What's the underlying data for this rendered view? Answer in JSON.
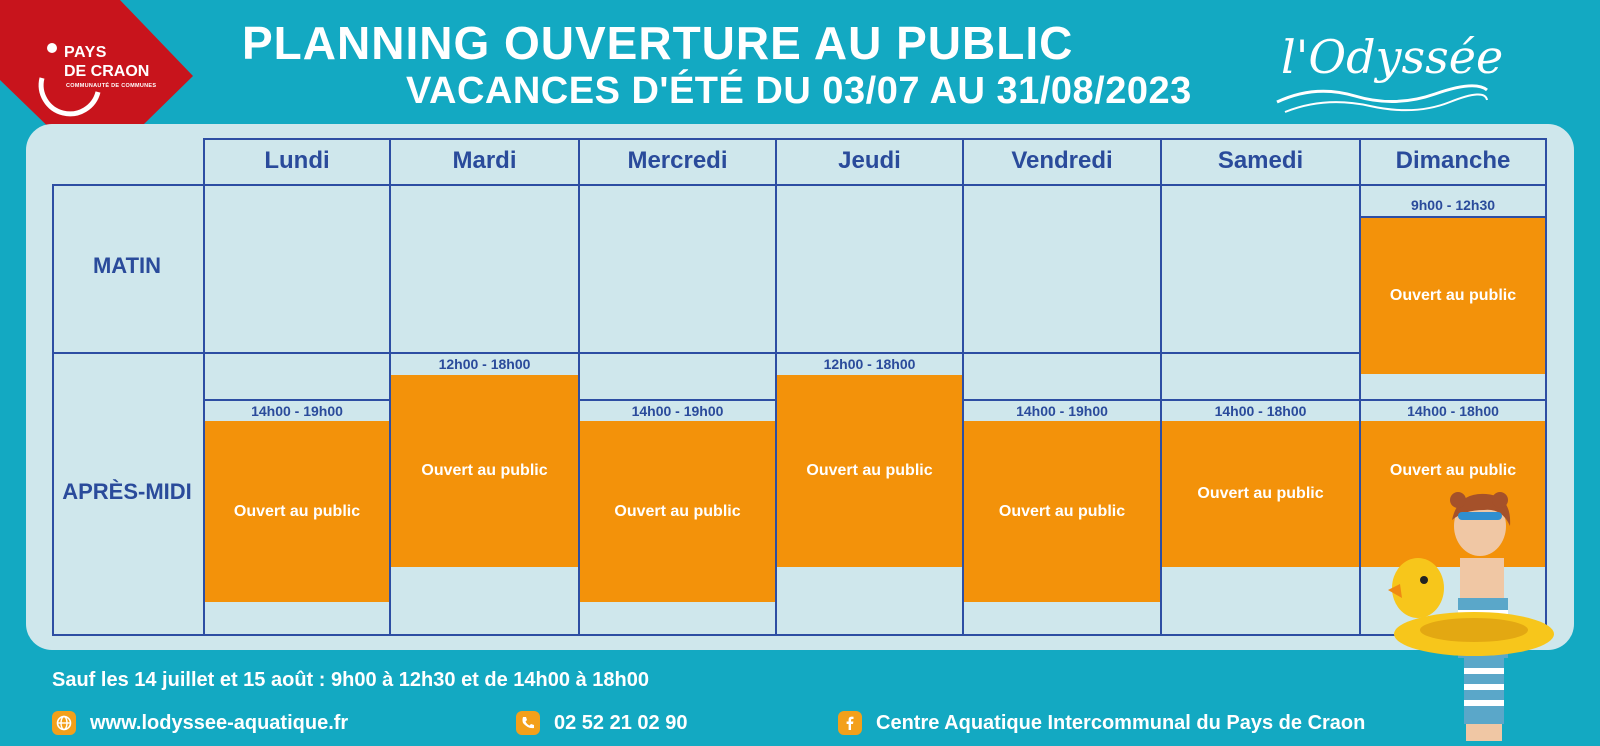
{
  "logo": {
    "line1": "PAYS",
    "line2": "DE CRAON",
    "line3": "COMMUNAUTÉ DE COMMUNES"
  },
  "title": "PLANNING OUVERTURE AU PUBLIC",
  "subtitle": "VACANCES D'ÉTÉ DU 03/07 AU 31/08/2023",
  "brand": "l'Odyssée",
  "days": [
    "Lundi",
    "Mardi",
    "Mercredi",
    "Jeudi",
    "Vendredi",
    "Samedi",
    "Dimanche"
  ],
  "periods": {
    "morning": "MATIN",
    "afternoon": "APRÈS-MIDI"
  },
  "slot_label": "Ouvert au public",
  "schedule": {
    "dimanche_matin": "9h00 - 12h30",
    "lundi_am": "14h00 - 19h00",
    "mardi_am": "12h00 - 18h00",
    "mercredi_am": "14h00 - 19h00",
    "jeudi_am": "12h00 - 18h00",
    "vendredi_am": "14h00 - 19h00",
    "samedi_am": "14h00 - 18h00",
    "dimanche_am": "14h00 - 18h00"
  },
  "footer": {
    "note": "Sauf les 14 juillet et 15 août : 9h00 à 12h30 et de 14h00 à 18h00",
    "website": "www.lodyssee-aquatique.fr",
    "phone": "02 52 21 02 90",
    "facebook": "Centre Aquatique Intercommunal du Pays de Craon"
  },
  "icons": {
    "website": "globe-icon",
    "phone": "phone-icon",
    "facebook": "facebook-icon"
  },
  "colors": {
    "background": "#13a9c2",
    "panel": "#cfe7ec",
    "grid": "#2d4ea3",
    "slot": "#f3920a",
    "logo_red": "#c8141c"
  }
}
